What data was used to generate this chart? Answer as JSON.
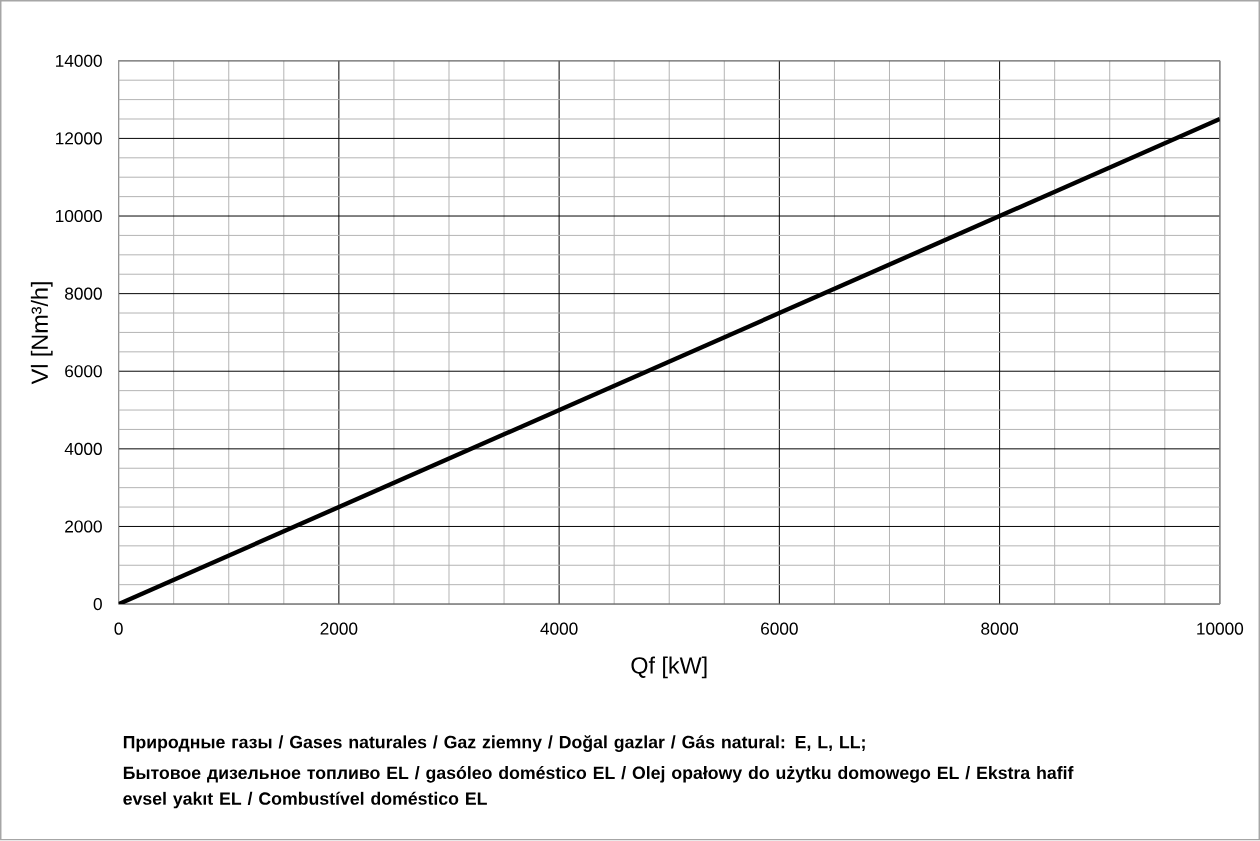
{
  "chart_data": {
    "type": "line",
    "xlabel": "Qf [kW]",
    "ylabel": "Vl [Nm³/h]",
    "x": [
      0,
      10000
    ],
    "series": [
      {
        "color": "#000000",
        "values": [
          0,
          12500
        ]
      }
    ],
    "xlim": [
      0,
      10000
    ],
    "ylim": [
      0,
      14000
    ],
    "xticks": [
      0,
      2000,
      4000,
      6000,
      8000,
      10000
    ],
    "yticks": [
      0,
      2000,
      4000,
      6000,
      8000,
      10000,
      12000,
      14000
    ],
    "grid": true,
    "annotations": [
      "Природные газы / Gases naturales / Gaz ziemny / Doğal gazlar / Gás natural: E, L, LL;",
      "Бытовое дизельное топливо EL / gasóleo doméstico EL / Olej opałowy do użytku domowego EL / Ekstra hafif evsel yakıt EL / Combustível doméstico EL"
    ]
  }
}
